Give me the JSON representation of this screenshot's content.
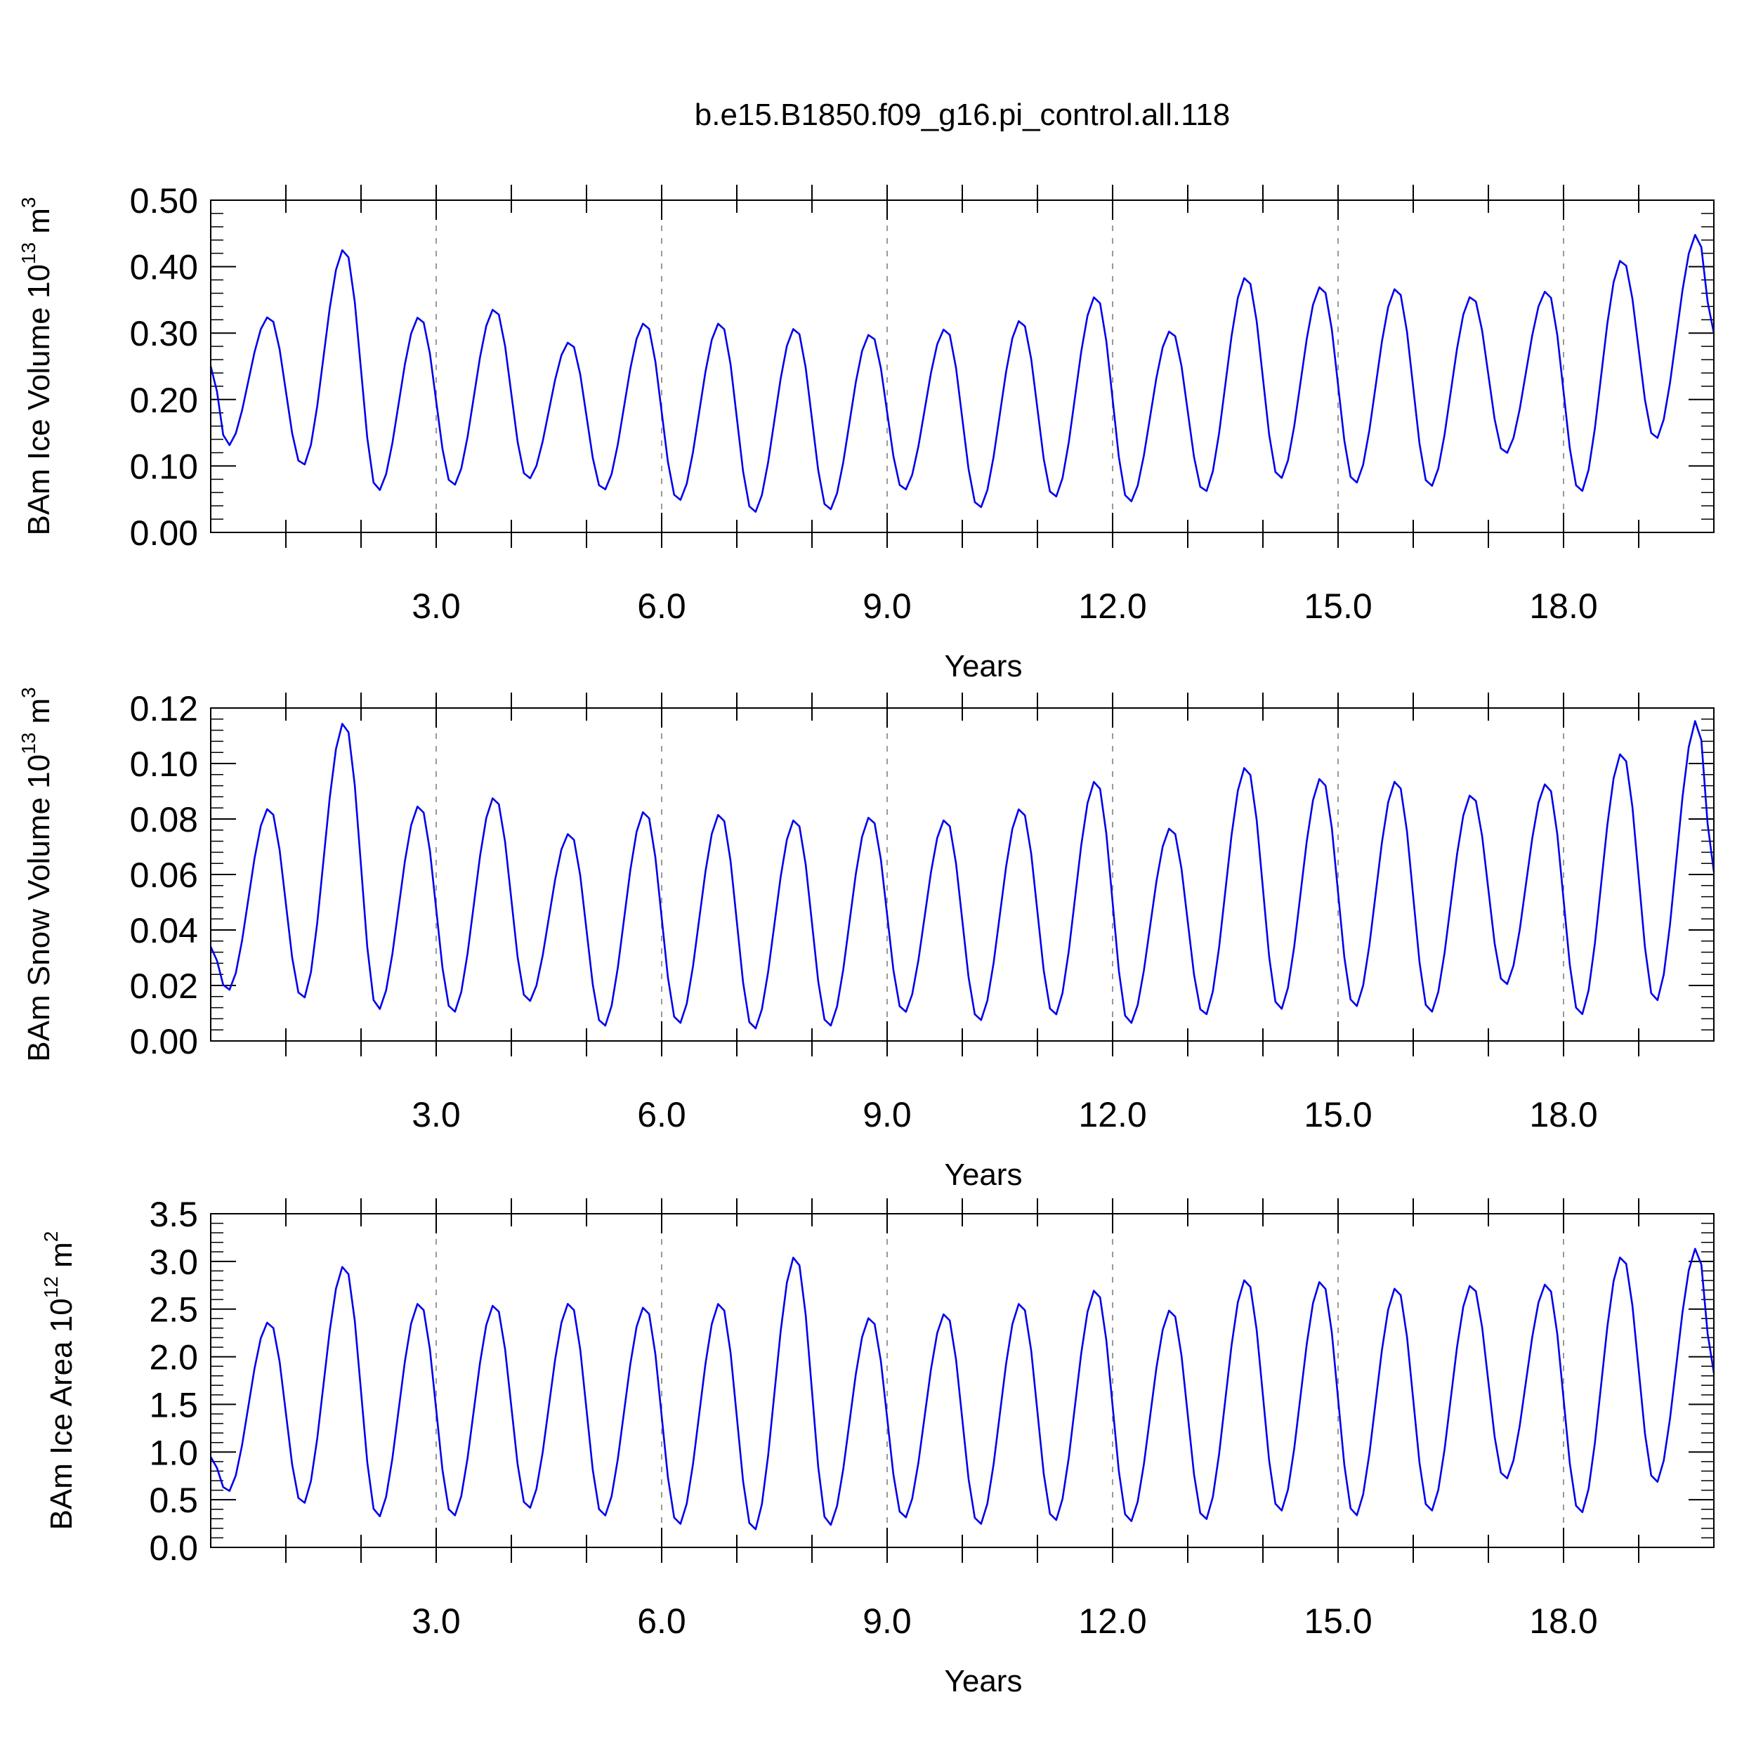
{
  "title": "b.e15.B1850.f09_g16.pi_control.all.118",
  "colors": {
    "series": "#0000ee",
    "axis": "#000000",
    "grid": "#999999"
  },
  "chart_data": [
    {
      "type": "line",
      "xlabel": "Years",
      "ylabel": {
        "text": "BAm Ice Volume 10",
        "sup1": "13",
        "mid": " m",
        "sup2": "3"
      },
      "xlim": [
        0.0,
        20.0
      ],
      "ylim": [
        0.0,
        0.5
      ],
      "xticks": [
        3.0,
        6.0,
        9.0,
        12.0,
        15.0,
        18.0
      ],
      "xtick_labels": [
        "3.0",
        "6.0",
        "9.0",
        "12.0",
        "15.0",
        "18.0"
      ],
      "yticks": [
        0.0,
        0.1,
        0.2,
        0.3,
        0.4,
        0.5
      ],
      "ytick_labels": [
        "0.00",
        "0.10",
        "0.20",
        "0.30",
        "0.40",
        "0.50"
      ],
      "grid": "dashed vertical at major x ticks",
      "series": [
        {
          "peaks": [
            0.325,
            0.427,
            0.325,
            0.337,
            0.287,
            0.316,
            0.316,
            0.308,
            0.299,
            0.307,
            0.32,
            0.356,
            0.304,
            0.385,
            0.371,
            0.368,
            0.356,
            0.364,
            0.411,
            0.45
          ],
          "troughs": [
            0.13,
            0.1,
            0.062,
            0.07,
            0.08,
            0.063,
            0.047,
            0.029,
            0.033,
            0.063,
            0.036,
            0.052,
            0.045,
            0.06,
            0.08,
            0.073,
            0.068,
            0.118,
            0.06,
            0.14
          ],
          "start": 0.25,
          "end": 0.3
        }
      ]
    },
    {
      "type": "line",
      "xlabel": "Years",
      "ylabel": {
        "text": "BAm Snow Volume 10",
        "sup1": "13",
        "mid": " m",
        "sup2": "3"
      },
      "xlim": [
        0.0,
        20.0
      ],
      "ylim": [
        0.0,
        0.12
      ],
      "xticks": [
        3.0,
        6.0,
        9.0,
        12.0,
        15.0,
        18.0
      ],
      "xtick_labels": [
        "3.0",
        "6.0",
        "9.0",
        "12.0",
        "15.0",
        "18.0"
      ],
      "yticks": [
        0.0,
        0.02,
        0.04,
        0.06,
        0.08,
        0.1,
        0.12
      ],
      "ytick_labels": [
        "0.00",
        "0.02",
        "0.04",
        "0.06",
        "0.08",
        "0.10",
        "0.12"
      ],
      "grid": "dashed vertical at major x ticks",
      "series": [
        {
          "peaks": [
            0.084,
            0.115,
            0.085,
            0.088,
            0.075,
            0.083,
            0.082,
            0.08,
            0.081,
            0.08,
            0.084,
            0.094,
            0.077,
            0.099,
            0.095,
            0.094,
            0.089,
            0.093,
            0.104,
            0.116
          ],
          "troughs": [
            0.018,
            0.015,
            0.011,
            0.01,
            0.014,
            0.005,
            0.006,
            0.004,
            0.005,
            0.01,
            0.007,
            0.009,
            0.006,
            0.009,
            0.011,
            0.012,
            0.01,
            0.02,
            0.009,
            0.014
          ],
          "start": 0.034,
          "end": 0.061
        }
      ]
    },
    {
      "type": "line",
      "xlabel": "Years",
      "ylabel": {
        "text": "BAm Ice Area 10",
        "sup1": "12",
        "mid": " m",
        "sup2": "2"
      },
      "xlim": [
        0.0,
        20.0
      ],
      "ylim": [
        0.0,
        3.5
      ],
      "xticks": [
        3.0,
        6.0,
        9.0,
        12.0,
        15.0,
        18.0
      ],
      "xtick_labels": [
        "3.0",
        "6.0",
        "9.0",
        "12.0",
        "15.0",
        "18.0"
      ],
      "yticks": [
        0.0,
        0.5,
        1.0,
        1.5,
        2.0,
        2.5,
        3.0,
        3.5
      ],
      "ytick_labels": [
        "0.0",
        "0.5",
        "1.0",
        "1.5",
        "2.0",
        "2.5",
        "3.0",
        "3.5"
      ],
      "grid": "dashed vertical at major x ticks",
      "series": [
        {
          "peaks": [
            2.37,
            2.96,
            2.57,
            2.55,
            2.57,
            2.53,
            2.57,
            3.06,
            2.42,
            2.46,
            2.57,
            2.71,
            2.5,
            2.82,
            2.8,
            2.73,
            2.76,
            2.77,
            3.06,
            3.15
          ],
          "troughs": [
            0.58,
            0.45,
            0.31,
            0.32,
            0.4,
            0.32,
            0.23,
            0.17,
            0.22,
            0.3,
            0.23,
            0.27,
            0.26,
            0.28,
            0.37,
            0.32,
            0.37,
            0.71,
            0.35,
            0.67
          ],
          "start": 0.95,
          "end": 1.83
        }
      ]
    }
  ]
}
